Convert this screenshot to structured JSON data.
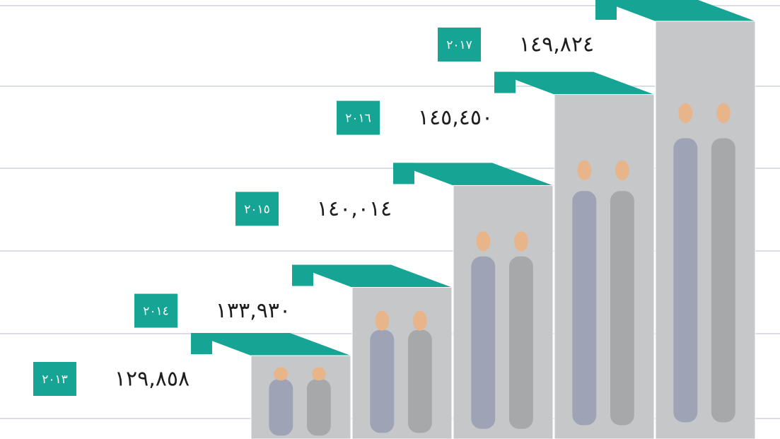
{
  "chart_data": {
    "type": "bar",
    "categories": [
      "٢٠١٣",
      "٢٠١٤",
      "٢٠١٥",
      "٢٠١٦",
      "٢٠١٧"
    ],
    "values": [
      129858,
      133930,
      140014,
      145450,
      149824
    ],
    "value_labels": [
      "١٢٩,٨٥٨",
      "١٣٣,٩٣٠",
      "١٤٠,٠١٤",
      "١٤٥,٤٥٠",
      "١٤٩,٨٢٤"
    ],
    "color": "#c5c7c9",
    "accent_color": "#16a595"
  }
}
